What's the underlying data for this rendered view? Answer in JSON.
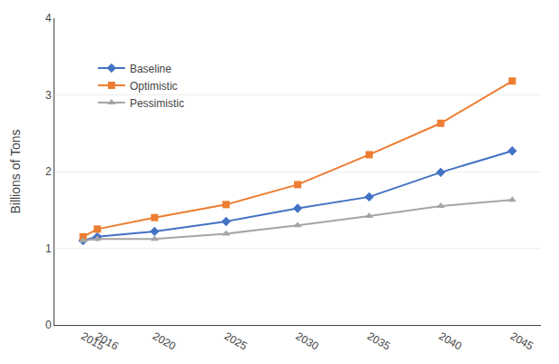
{
  "chart_data": {
    "type": "line",
    "x": [
      2015,
      2016,
      2020,
      2025,
      2030,
      2035,
      2040,
      2045
    ],
    "xlim": [
      2013.0,
      2047.0
    ],
    "xticks": [
      2015,
      2016,
      2020,
      2025,
      2030,
      2035,
      2040,
      2045
    ],
    "ylabel": "Billions of Tons",
    "ylim": [
      0,
      4
    ],
    "yticks": [
      0,
      1,
      2,
      3,
      4
    ],
    "grid": "y",
    "legend": "upper left",
    "series": [
      {
        "name": "Baseline",
        "color": "#4472C4",
        "marker": "diamond",
        "values": [
          1.1,
          1.15,
          1.22,
          1.35,
          1.52,
          1.67,
          1.99,
          2.27
        ]
      },
      {
        "name": "Optimistic",
        "color": "#ED7D31",
        "marker": "square",
        "values": [
          1.15,
          1.25,
          1.4,
          1.57,
          1.83,
          2.22,
          2.63,
          3.18
        ]
      },
      {
        "name": "Pessimistic",
        "color": "#A5A5A5",
        "marker": "triangle-up",
        "values": [
          1.1,
          1.12,
          1.12,
          1.19,
          1.3,
          1.42,
          1.55,
          1.63
        ]
      }
    ]
  }
}
